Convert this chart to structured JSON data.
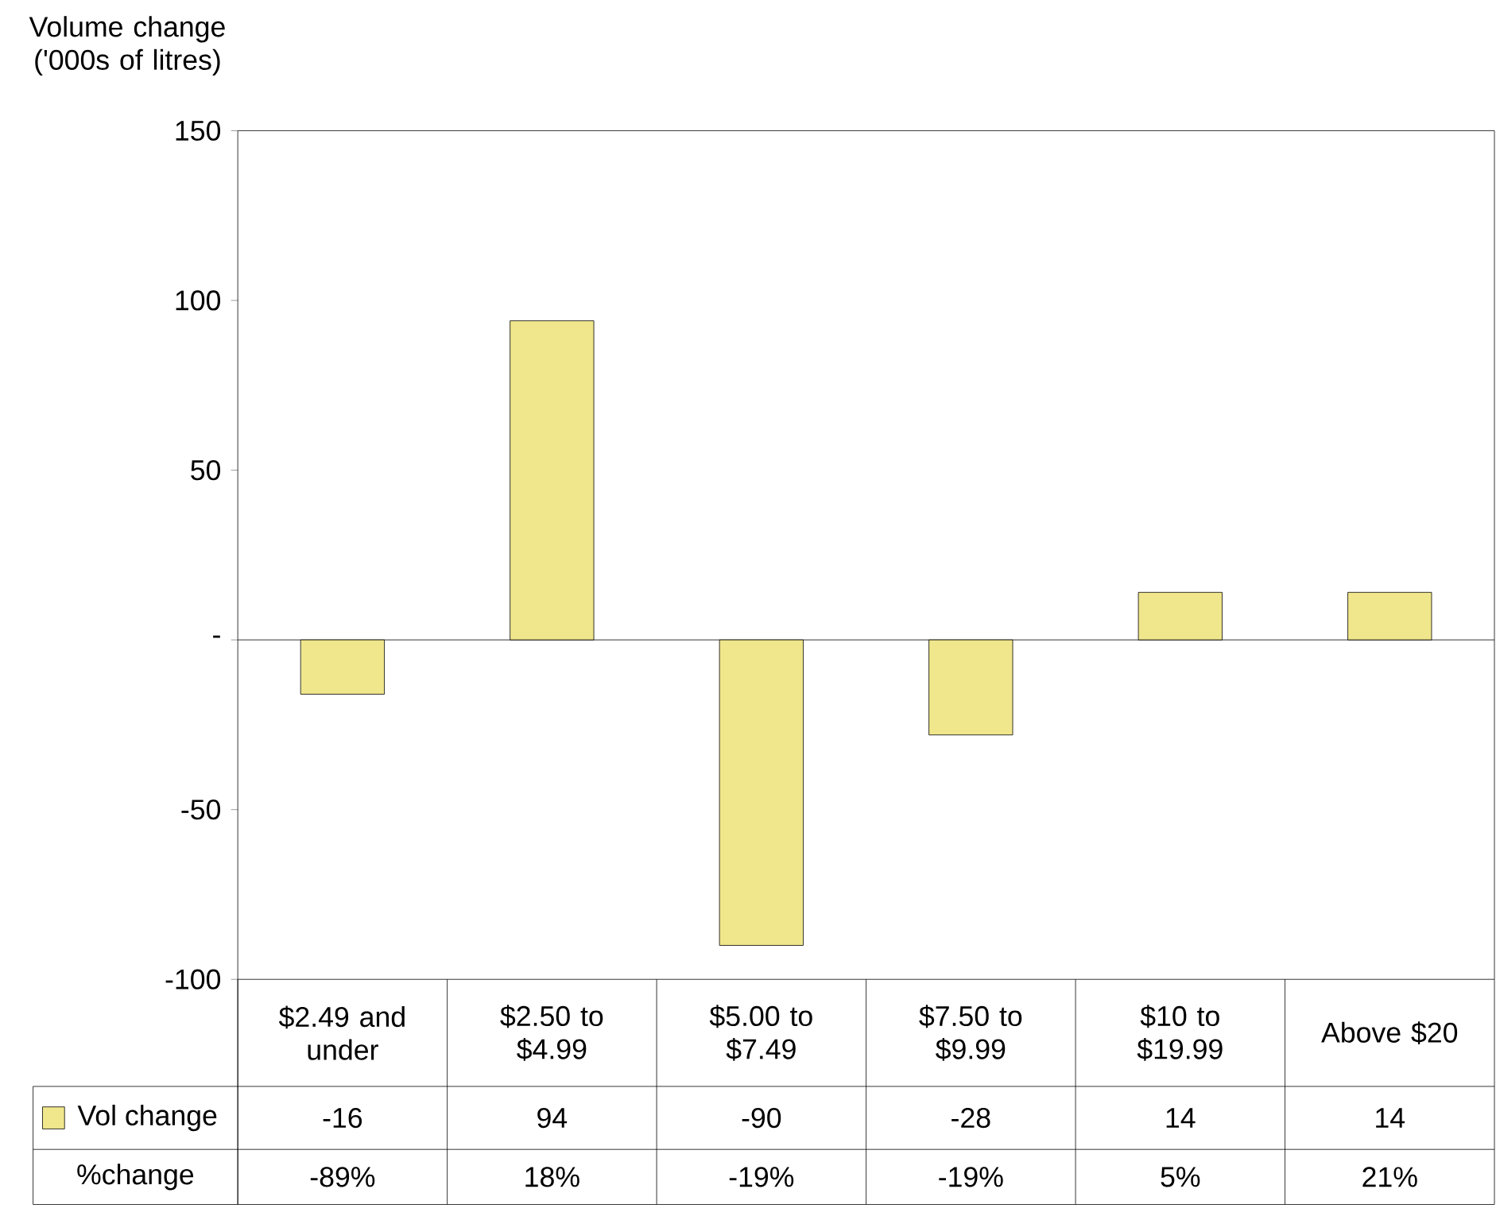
{
  "chart_data": {
    "type": "bar",
    "ylabel": "Volume change ('000s of litres)",
    "categories": [
      "$2.49 and under",
      "$2.50 to $4.99",
      "$5.00 to $7.49",
      "$7.50 to $9.99",
      "$10 to $19.99",
      "Above $20"
    ],
    "series": [
      {
        "name": "Vol change",
        "color": "#f0e68c",
        "values": [
          -16,
          94,
          -90,
          -28,
          14,
          14
        ]
      }
    ],
    "ylim": [
      -100,
      150
    ],
    "yticks": [
      -100,
      -50,
      {
        "value": 0,
        "label": "-"
      },
      50,
      100,
      150
    ],
    "data_labels": true,
    "legend": "bottom",
    "annotations": [
      "%change",
      "-89%",
      "18%",
      "-19%",
      "-19%",
      "5%",
      "21%"
    ]
  }
}
